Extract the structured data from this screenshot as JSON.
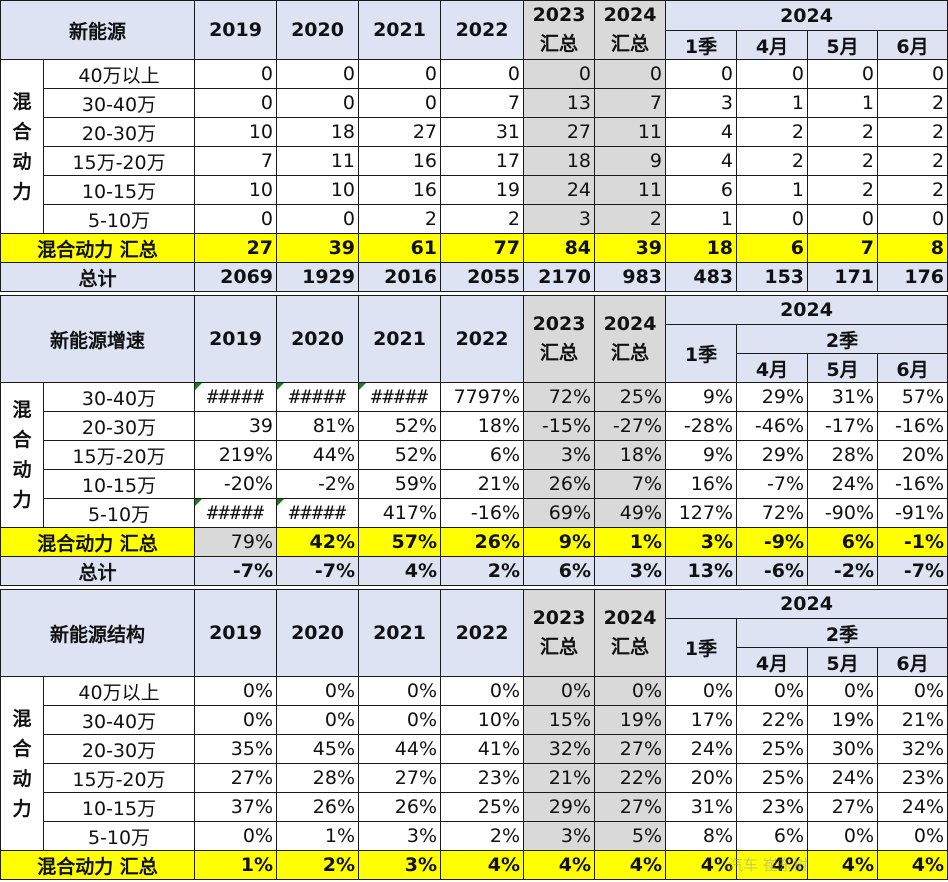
{
  "years": [
    "2019",
    "2020",
    "2021",
    "2022"
  ],
  "sum_cols": [
    [
      "2023",
      "汇总"
    ],
    [
      "2024",
      "汇总"
    ]
  ],
  "y2024": "2024",
  "months": [
    "1季",
    "4月",
    "5月",
    "6月"
  ],
  "q2": "2季",
  "side_label": [
    "混",
    "合",
    "动",
    "力"
  ],
  "table1": {
    "title": "新能源",
    "rows": [
      {
        "label": "40万以上",
        "values": [
          "0",
          "0",
          "0",
          "0",
          "0",
          "0",
          "0",
          "0",
          "0",
          "0"
        ]
      },
      {
        "label": "30-40万",
        "values": [
          "0",
          "0",
          "0",
          "7",
          "13",
          "7",
          "3",
          "1",
          "1",
          "2"
        ]
      },
      {
        "label": "20-30万",
        "values": [
          "10",
          "18",
          "27",
          "31",
          "27",
          "11",
          "4",
          "2",
          "2",
          "2"
        ]
      },
      {
        "label": "15万-20万",
        "values": [
          "7",
          "11",
          "16",
          "17",
          "18",
          "9",
          "4",
          "2",
          "2",
          "2"
        ]
      },
      {
        "label": "10-15万",
        "values": [
          "10",
          "10",
          "16",
          "19",
          "24",
          "11",
          "6",
          "1",
          "2",
          "2"
        ]
      },
      {
        "label": "5-10万",
        "values": [
          "0",
          "0",
          "2",
          "2",
          "3",
          "2",
          "1",
          "0",
          "0",
          "0"
        ]
      }
    ],
    "subtotal": {
      "label": "混合动力 汇总",
      "values": [
        "27",
        "39",
        "61",
        "77",
        "84",
        "39",
        "18",
        "6",
        "7",
        "8"
      ]
    },
    "total": {
      "label": "总计",
      "values": [
        "2069",
        "1929",
        "2016",
        "2055",
        "2170",
        "983",
        "483",
        "153",
        "171",
        "176"
      ]
    }
  },
  "table2": {
    "title": "新能源增速",
    "rows": [
      {
        "label": "30-40万",
        "values": [
          "#####",
          "#####",
          "#####",
          "7797%",
          "72%",
          "25%",
          "9%",
          "29%",
          "31%",
          "57%"
        ]
      },
      {
        "label": "20-30万",
        "values": [
          "39",
          "81%",
          "52%",
          "18%",
          "-15%",
          "-27%",
          "-28%",
          "-46%",
          "-17%",
          "-16%"
        ]
      },
      {
        "label": "15万-20万",
        "values": [
          "219%",
          "44%",
          "52%",
          "6%",
          "3%",
          "18%",
          "9%",
          "29%",
          "28%",
          "20%"
        ]
      },
      {
        "label": "10-15万",
        "values": [
          "-20%",
          "-2%",
          "59%",
          "21%",
          "26%",
          "7%",
          "16%",
          "-7%",
          "24%",
          "-16%"
        ]
      },
      {
        "label": "5-10万",
        "values": [
          "#####",
          "#####",
          "417%",
          "-16%",
          "69%",
          "49%",
          "127%",
          "72%",
          "-90%",
          "-91%"
        ]
      }
    ],
    "subtotal": {
      "label": "混合动力 汇总",
      "values": [
        "79%",
        "42%",
        "57%",
        "26%",
        "9%",
        "1%",
        "3%",
        "-9%",
        "6%",
        "-1%"
      ]
    },
    "total": {
      "label": "总计",
      "values": [
        "-7%",
        "-7%",
        "4%",
        "2%",
        "6%",
        "3%",
        "13%",
        "-6%",
        "-2%",
        "-7%"
      ]
    }
  },
  "table3": {
    "title": "新能源结构",
    "rows": [
      {
        "label": "40万以上",
        "values": [
          "0%",
          "0%",
          "0%",
          "0%",
          "0%",
          "0%",
          "0%",
          "0%",
          "0%",
          "0%"
        ]
      },
      {
        "label": "30-40万",
        "values": [
          "0%",
          "0%",
          "0%",
          "10%",
          "15%",
          "19%",
          "17%",
          "22%",
          "19%",
          "21%"
        ]
      },
      {
        "label": "20-30万",
        "values": [
          "35%",
          "45%",
          "44%",
          "41%",
          "32%",
          "27%",
          "24%",
          "25%",
          "30%",
          "32%"
        ]
      },
      {
        "label": "15万-20万",
        "values": [
          "27%",
          "28%",
          "27%",
          "23%",
          "21%",
          "22%",
          "20%",
          "25%",
          "24%",
          "23%"
        ]
      },
      {
        "label": "10-15万",
        "values": [
          "37%",
          "26%",
          "26%",
          "25%",
          "29%",
          "27%",
          "31%",
          "23%",
          "27%",
          "24%"
        ]
      },
      {
        "label": "5-10万",
        "values": [
          "0%",
          "1%",
          "3%",
          "2%",
          "3%",
          "5%",
          "8%",
          "6%",
          "0%",
          "0%"
        ]
      }
    ],
    "subtotal": {
      "label": "混合动力 汇总",
      "values": [
        "1%",
        "2%",
        "3%",
        "4%",
        "4%",
        "4%",
        "4%",
        "4%",
        "4%",
        "4%"
      ]
    }
  },
  "watermark": "汽车 崔东树"
}
